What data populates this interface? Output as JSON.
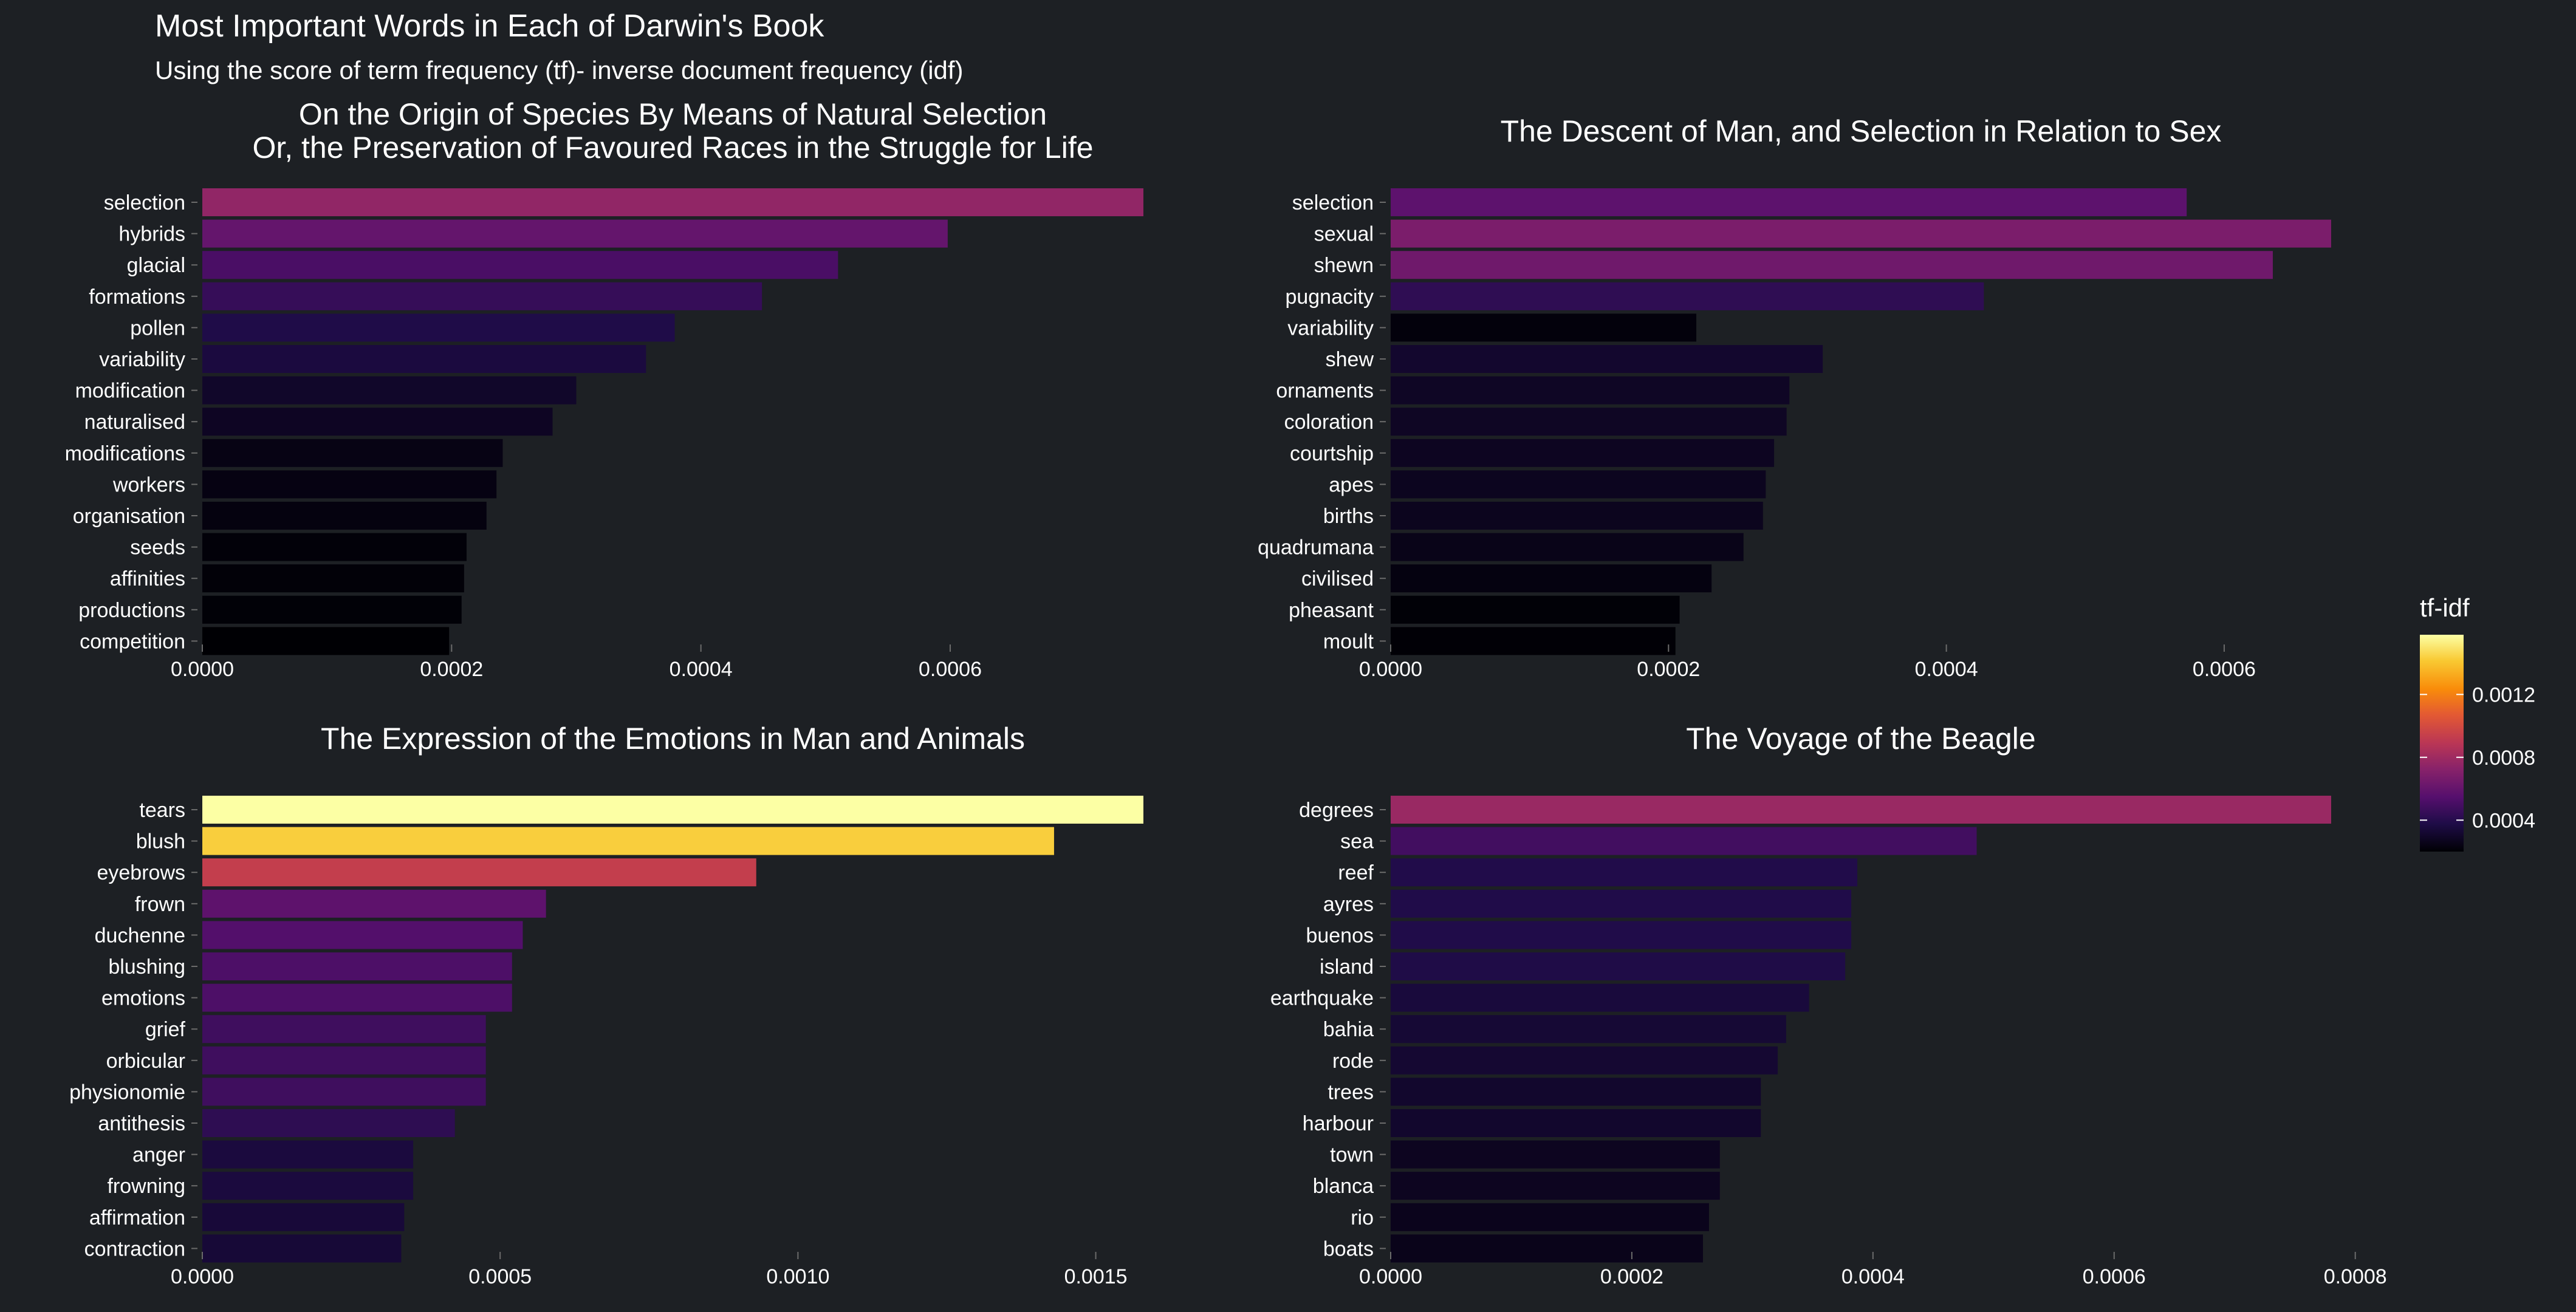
{
  "title": "Most Important Words in Each of Darwin's Book",
  "subtitle": "Using the score of term frequency (tf)- inverse document frequency (idf)",
  "legend": {
    "title": "tf-idf",
    "ticks": [
      "0.0012",
      "0.0008",
      "0.0004"
    ],
    "tick_values": [
      0.0012,
      0.0008,
      0.0004
    ],
    "range": [
      0.0002,
      0.00158
    ],
    "colormap": "inferno",
    "placement": "right"
  },
  "chart_data": [
    {
      "type": "bar",
      "orientation": "horizontal",
      "title_lines": [
        "On the Origin of Species By Means of Natural Selection",
        "Or, the Preservation of Favoured Races in the Struggle for Life"
      ],
      "categories": [
        "selection",
        "hybrids",
        "glacial",
        "formations",
        "pollen",
        "variability",
        "modification",
        "naturalised",
        "modifications",
        "workers",
        "organisation",
        "seeds",
        "affinities",
        "productions",
        "competition"
      ],
      "values": [
        0.000755,
        0.000598,
        0.00051,
        0.000449,
        0.000379,
        0.000356,
        0.0003,
        0.000281,
        0.000241,
        0.000236,
        0.000228,
        0.000212,
        0.00021,
        0.000208,
        0.000198
      ],
      "xlim": [
        0,
        0.000755
      ],
      "xticks": [
        0,
        0.0002,
        0.0004,
        0.0006
      ],
      "xtick_labels": [
        "0.0000",
        "0.0002",
        "0.0004",
        "0.0006"
      ],
      "xlabel": "",
      "ylabel": ""
    },
    {
      "type": "bar",
      "orientation": "horizontal",
      "title_lines": [
        "The Descent of Man, and Selection in Relation to Sex"
      ],
      "categories": [
        "selection",
        "sexual",
        "shewn",
        "pugnacity",
        "variability",
        "shew",
        "ornaments",
        "coloration",
        "courtship",
        "apes",
        "births",
        "quadrumana",
        "civilised",
        "pheasant",
        "moult"
      ],
      "values": [
        0.000573,
        0.000677,
        0.000635,
        0.000427,
        0.00022,
        0.000311,
        0.000287,
        0.000285,
        0.000276,
        0.00027,
        0.000268,
        0.000254,
        0.000231,
        0.000208,
        0.000205
      ],
      "xlim": [
        0,
        0.000677
      ],
      "xticks": [
        0,
        0.0002,
        0.0004,
        0.0006
      ],
      "xtick_labels": [
        "0.0000",
        "0.0002",
        "0.0004",
        "0.0006"
      ],
      "xlabel": "",
      "ylabel": ""
    },
    {
      "type": "bar",
      "orientation": "horizontal",
      "title_lines": [
        "The Expression of the Emotions in Man and Animals"
      ],
      "categories": [
        "tears",
        "blush",
        "eyebrows",
        "frown",
        "duchenne",
        "blushing",
        "emotions",
        "grief",
        "orbicular",
        "physionomie",
        "antithesis",
        "anger",
        "frowning",
        "affirmation",
        "contraction"
      ],
      "values": [
        0.00158,
        0.00143,
        0.00093,
        0.000577,
        0.000538,
        0.00052,
        0.00052,
        0.000476,
        0.000476,
        0.000476,
        0.000424,
        0.000354,
        0.000354,
        0.000339,
        0.000334
      ],
      "xlim": [
        0,
        0.00158
      ],
      "xticks": [
        0,
        0.0005,
        0.001,
        0.0015
      ],
      "xtick_labels": [
        "0.0000",
        "0.0005",
        "0.0010",
        "0.0015"
      ],
      "xlabel": "",
      "ylabel": ""
    },
    {
      "type": "bar",
      "orientation": "horizontal",
      "title_lines": [
        "The Voyage of the Beagle"
      ],
      "categories": [
        "degrees",
        "sea",
        "reef",
        "ayres",
        "buenos",
        "island",
        "earthquake",
        "bahia",
        "rode",
        "trees",
        "harbour",
        "town",
        "blanca",
        "rio",
        "boats"
      ],
      "values": [
        0.00078,
        0.000486,
        0.000387,
        0.000382,
        0.000382,
        0.000377,
        0.000347,
        0.000328,
        0.000321,
        0.000307,
        0.000307,
        0.000273,
        0.000273,
        0.000264,
        0.000259
      ],
      "xlim": [
        0,
        0.00078
      ],
      "xticks": [
        0,
        0.0002,
        0.0004,
        0.0006,
        0.0008
      ],
      "xtick_labels": [
        "0.0000",
        "0.0002",
        "0.0004",
        "0.0006",
        "0.0008"
      ],
      "xlabel": "",
      "ylabel": ""
    }
  ]
}
